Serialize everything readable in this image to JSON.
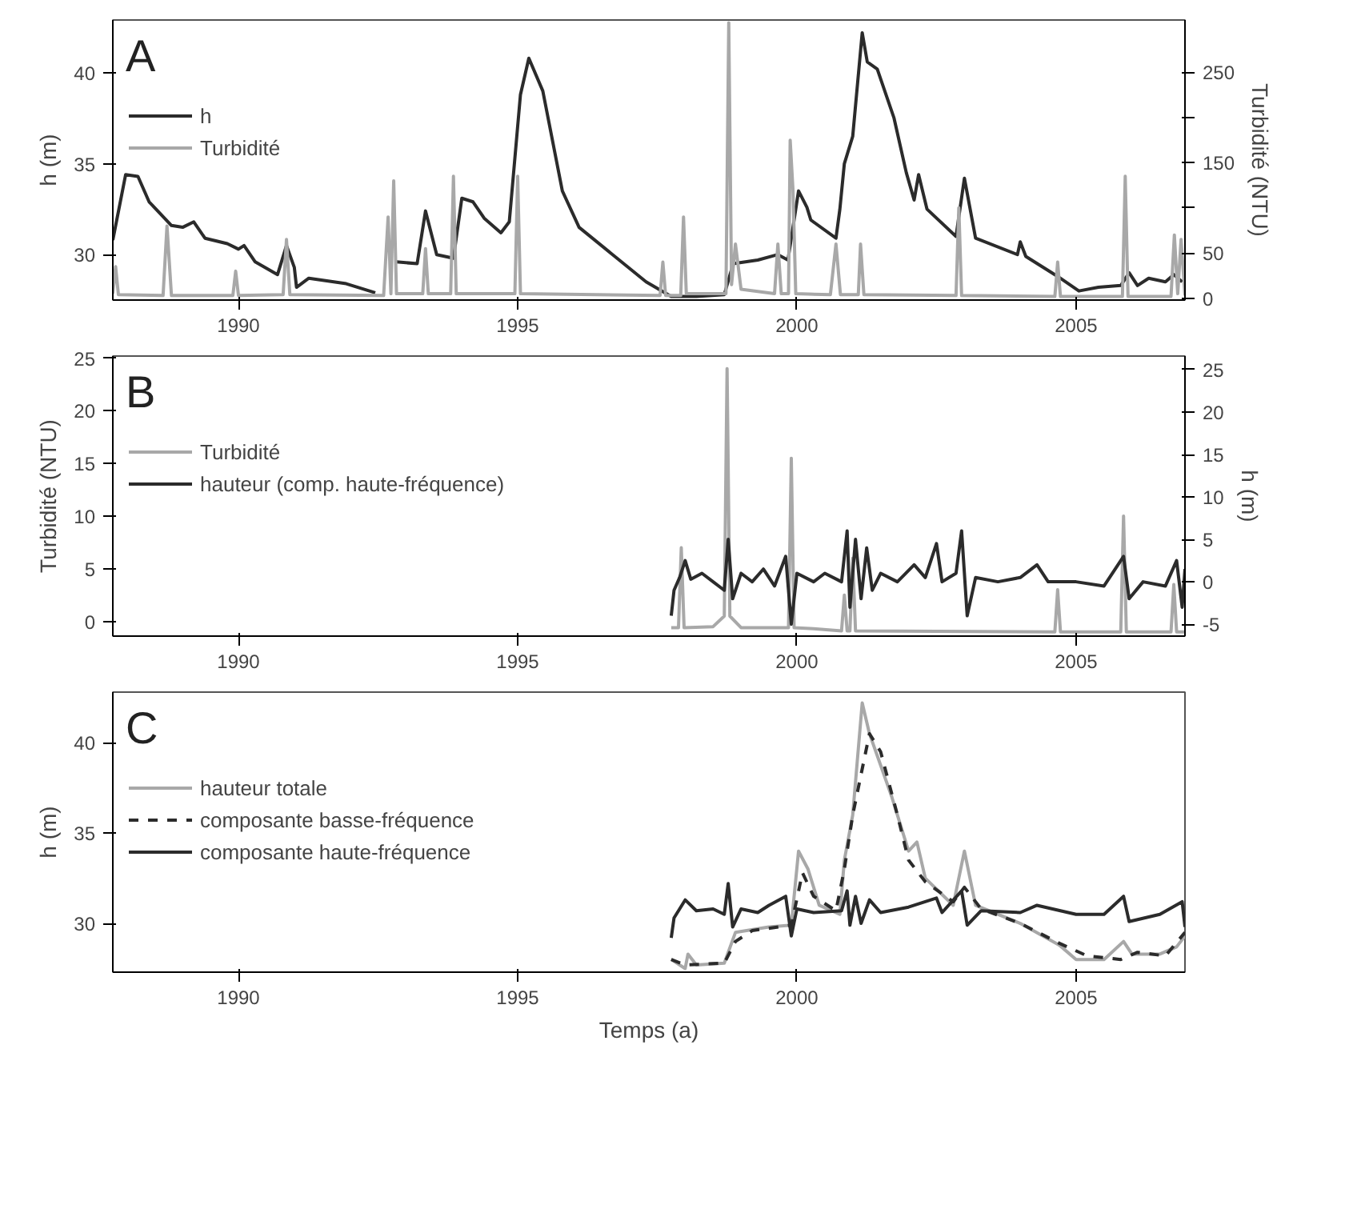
{
  "chart_data": [
    {
      "type": "line",
      "title": "A",
      "ylabel": "h (m)",
      "y2label": "Turbidité (NTU)",
      "xlim": [
        1987.75,
        2006.95
      ],
      "xticks": [
        1990,
        1995,
        2000,
        2005
      ],
      "ylim": [
        27.5,
        42.9
      ],
      "yticks": [
        30,
        35,
        40
      ],
      "y2lim": [
        -2,
        308
      ],
      "y2ticks": [
        0,
        50,
        {
          "value": 100,
          "label": null
        },
        150,
        {
          "value": 200,
          "label": null
        },
        250
      ],
      "legend": "top left",
      "grid": false,
      "series": [
        {
          "name": "h",
          "color": "#2b2b2b",
          "x": [
            1987.75,
            1987.98,
            1988.2,
            1988.4,
            1988.8,
            1989.0,
            1989.2,
            1989.4,
            1989.8,
            1990.0,
            1990.1,
            1990.3,
            1990.7,
            1990.86,
            1991.0,
            1991.04,
            1991.26,
            1991.93,
            1992.45,
            1992.6,
            1992.83,
            1993.2,
            1993.35,
            1993.55,
            1993.85,
            1994.0,
            1994.2,
            1994.4,
            1994.7,
            1994.85,
            1995.05,
            1995.2,
            1995.45,
            1995.8,
            1996.1,
            1996.7,
            1997.3,
            1997.75,
            1998.2,
            1998.7,
            1998.86,
            1999.3,
            1999.66,
            1999.84,
            2000.03,
            2000.18,
            2000.25,
            2000.7,
            2000.77,
            2000.85,
            2001.0,
            2001.17,
            2001.26,
            2001.44,
            2001.74,
            2001.96,
            2002.1,
            2002.18,
            2002.33,
            2002.85,
            2003.0,
            2003.2,
            2003.95,
            2004.0,
            2004.1,
            2004.67,
            2005.05,
            2005.4,
            2005.8,
            2005.95,
            2006.1,
            2006.3,
            2006.6,
            2006.75,
            2006.9
          ],
          "values": [
            30.8,
            34.4,
            34.3,
            32.9,
            31.6,
            31.5,
            31.8,
            30.9,
            30.6,
            30.3,
            30.5,
            29.6,
            28.9,
            30.5,
            29.3,
            28.2,
            28.7,
            28.4,
            27.9,
            null,
            29.6,
            29.5,
            32.4,
            30.0,
            29.8,
            33.1,
            32.9,
            32.0,
            31.2,
            31.8,
            38.8,
            40.8,
            39.0,
            33.5,
            31.5,
            30.0,
            28.5,
            27.7,
            27.7,
            27.8,
            29.5,
            29.7,
            30.0,
            29.7,
            33.5,
            32.6,
            31.9,
            30.9,
            32.5,
            35.0,
            36.5,
            42.2,
            40.6,
            40.2,
            37.5,
            34.5,
            33.0,
            34.4,
            32.5,
            31.0,
            34.2,
            30.9,
            30.0,
            30.7,
            29.9,
            28.8,
            28.0,
            28.2,
            28.3,
            29.0,
            28.3,
            28.7,
            28.5,
            28.9,
            28.5
          ]
        },
        {
          "name": "Turbidité",
          "color": "#a8a8a8",
          "axis": "y2",
          "x": [
            1987.75,
            1987.8,
            1987.85,
            1988.65,
            1988.72,
            1988.8,
            1989.9,
            1989.95,
            1990.0,
            1990.8,
            1990.86,
            1990.92,
            1992.6,
            1992.68,
            1992.73,
            1992.78,
            1992.83,
            1993.3,
            1993.35,
            1993.4,
            1993.8,
            1993.85,
            1993.9,
            1994.95,
            1995.0,
            1995.05,
            1997.55,
            1997.6,
            1997.65,
            1997.92,
            1997.97,
            1998.02,
            1998.73,
            1998.78,
            1998.83,
            1998.9,
            1999.0,
            1999.6,
            1999.66,
            1999.72,
            1999.85,
            1999.88,
            1999.93,
            1999.98,
            2000.6,
            2000.7,
            2000.78,
            2001.1,
            2001.14,
            2001.2,
            2002.85,
            2002.9,
            2002.95,
            2004.62,
            2004.67,
            2004.72,
            2005.83,
            2005.88,
            2005.93,
            2006.7,
            2006.76,
            2006.82,
            2006.88,
            2006.95
          ],
          "values": [
            5,
            35,
            4,
            3,
            80,
            3,
            3,
            30,
            3,
            4,
            65,
            4,
            3,
            90,
            5,
            130,
            5,
            5,
            55,
            5,
            5,
            135,
            5,
            5,
            135,
            5,
            3,
            40,
            3,
            3,
            90,
            5,
            5,
            305,
            15,
            60,
            10,
            5,
            60,
            5,
            5,
            175,
            120,
            5,
            4,
            60,
            4,
            4,
            60,
            4,
            3,
            100,
            3,
            2,
            40,
            2,
            2,
            135,
            2,
            2,
            70,
            5,
            65,
            3
          ]
        }
      ]
    },
    {
      "type": "line",
      "title": "B",
      "ylabel": "Turbidité (NTU)",
      "y2label": "h (m)",
      "xlim": [
        1987.75,
        2006.95
      ],
      "xticks": [
        1990,
        1995,
        2000,
        2005
      ],
      "ylim": [
        -1.4,
        25.2
      ],
      "yticks": [
        0,
        5,
        10,
        15,
        20,
        25
      ],
      "y2lim": [
        -6.4,
        26.6
      ],
      "y2ticks": [
        -5,
        0,
        5,
        10,
        15,
        20,
        25
      ],
      "legend": "top left",
      "grid": false,
      "series": [
        {
          "name": "Turbidité",
          "color": "#a8a8a8",
          "x": [
            1997.75,
            1997.88,
            1997.93,
            1997.98,
            1998.5,
            1998.7,
            1998.75,
            1998.8,
            1999.0,
            1999.85,
            1999.9,
            1999.95,
            2000.3,
            2000.8,
            2000.85,
            2000.9,
            2000.95,
            2001.0,
            2001.05,
            2004.62,
            2004.67,
            2004.72,
            2005.8,
            2005.85,
            2005.9,
            2006.7,
            2006.75,
            2006.8,
            2006.95
          ],
          "values": [
            -0.6,
            -0.6,
            7,
            -0.6,
            -0.5,
            0.5,
            24,
            0.5,
            -0.6,
            -0.6,
            15.5,
            -0.6,
            -0.7,
            -0.9,
            2.5,
            -0.9,
            -0.9,
            6,
            -0.9,
            -1.0,
            3,
            -1.0,
            -1.0,
            10,
            -1.0,
            -1.0,
            3.5,
            -1.0,
            -1.0
          ]
        },
        {
          "name": "hauteur (comp. haute-fréquence)",
          "color": "#2b2b2b",
          "axis": "y2",
          "x": [
            1997.75,
            1997.8,
            1997.9,
            1998.0,
            1998.1,
            1998.3,
            1998.5,
            1998.7,
            1998.77,
            1998.85,
            1999.0,
            1999.2,
            1999.4,
            1999.6,
            1999.8,
            1999.9,
            2000.0,
            2000.3,
            2000.5,
            2000.8,
            2000.9,
            2000.95,
            2001.05,
            2001.15,
            2001.25,
            2001.35,
            2001.5,
            2001.8,
            2002.1,
            2002.3,
            2002.5,
            2002.6,
            2002.85,
            2002.95,
            2003.05,
            2003.2,
            2003.6,
            2004.0,
            2004.3,
            2004.5,
            2005.0,
            2005.5,
            2005.85,
            2005.95,
            2006.2,
            2006.6,
            2006.8,
            2006.9,
            2006.95
          ],
          "values": [
            -4,
            -1,
            0.5,
            2.5,
            0.3,
            1,
            0,
            -1,
            5,
            -2,
            1,
            0,
            1.5,
            -0.5,
            3,
            -5,
            1,
            0,
            1,
            0,
            6,
            -3,
            5,
            -2,
            4,
            -1,
            1,
            0,
            2,
            0.5,
            4.5,
            0,
            1,
            6,
            -4,
            0.5,
            0,
            0.5,
            2,
            0,
            0,
            -0.5,
            3,
            -2,
            0,
            -0.5,
            2.5,
            -3,
            1.5
          ]
        }
      ]
    },
    {
      "type": "line",
      "title": "C",
      "ylabel": "h (m)",
      "xlabel": "Temps (a)",
      "xlim": [
        1987.75,
        2006.95
      ],
      "xticks": [
        1990,
        1995,
        2000,
        2005
      ],
      "ylim": [
        27.3,
        42.8
      ],
      "yticks": [
        30,
        35,
        40
      ],
      "legend": "top left",
      "grid": false,
      "series": [
        {
          "name": "hauteur totale",
          "color": "#a8a8a8",
          "x": [
            1997.75,
            1998.0,
            1998.05,
            1998.2,
            1998.7,
            1998.9,
            1999.5,
            1999.9,
            2000.03,
            2000.2,
            2000.4,
            2000.77,
            2000.85,
            2001.0,
            2001.17,
            2001.3,
            2001.7,
            2002.0,
            2002.15,
            2002.3,
            2002.8,
            2003.0,
            2003.2,
            2004.0,
            2004.7,
            2005.0,
            2005.5,
            2005.85,
            2006.0,
            2006.5,
            2006.8,
            2006.95
          ],
          "values": [
            28.0,
            27.5,
            28.3,
            27.7,
            27.8,
            29.5,
            29.8,
            29.9,
            34.0,
            33.0,
            31.0,
            30.5,
            33.5,
            36.0,
            42.2,
            40.5,
            37.0,
            34.0,
            34.5,
            32.5,
            31.0,
            34.0,
            31.0,
            30.0,
            28.8,
            28.0,
            28.0,
            29.0,
            28.3,
            28.3,
            28.7,
            29.3
          ]
        },
        {
          "name": "composante basse-fréquence",
          "color": "#2b2b2b",
          "line_style": "dashed",
          "x": [
            1997.75,
            1998.0,
            1998.7,
            1998.9,
            1999.2,
            1999.9,
            2000.1,
            2000.3,
            2000.7,
            2000.85,
            2001.0,
            2001.3,
            2001.5,
            2001.8,
            2002.0,
            2002.3,
            2002.8,
            2003.0,
            2003.3,
            2004.0,
            2004.7,
            2005.2,
            2005.8,
            2006.1,
            2006.6,
            2006.95
          ],
          "values": [
            28.0,
            27.7,
            27.8,
            29.0,
            29.6,
            29.9,
            32.8,
            31.5,
            30.7,
            33.0,
            36.0,
            40.5,
            39.5,
            36.0,
            33.5,
            32.3,
            31.2,
            32.0,
            30.8,
            30.0,
            28.9,
            28.2,
            28.0,
            28.4,
            28.2,
            29.5
          ]
        },
        {
          "name": "composante haute-fréquence",
          "color": "#2b2b2b",
          "x": [
            1997.75,
            1997.8,
            1997.9,
            1998.0,
            1998.2,
            1998.5,
            1998.7,
            1998.77,
            1998.85,
            1999.0,
            1999.3,
            1999.5,
            1999.8,
            1999.9,
            2000.0,
            2000.3,
            2000.8,
            2000.9,
            2000.95,
            2001.05,
            2001.15,
            2001.3,
            2001.5,
            2002.0,
            2002.5,
            2002.6,
            2002.95,
            2003.05,
            2003.3,
            2004.0,
            2004.3,
            2005.0,
            2005.5,
            2005.85,
            2005.95,
            2006.5,
            2006.9,
            2006.95
          ],
          "values": [
            29.2,
            30.3,
            30.8,
            31.3,
            30.7,
            30.8,
            30.5,
            32.2,
            29.8,
            30.8,
            30.6,
            31.0,
            31.5,
            29.3,
            30.8,
            30.6,
            30.7,
            31.8,
            29.9,
            31.5,
            30.0,
            31.3,
            30.6,
            30.9,
            31.4,
            30.6,
            31.8,
            29.9,
            30.7,
            30.6,
            31.0,
            30.5,
            30.5,
            31.5,
            30.1,
            30.5,
            31.2,
            29.8
          ]
        }
      ]
    }
  ]
}
